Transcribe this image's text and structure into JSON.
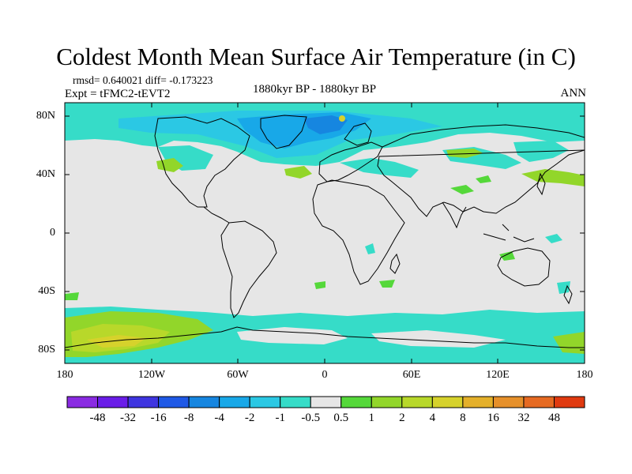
{
  "title": "Coldest Month Mean Surface Air Temperature (in C)",
  "stats": "rmsd= 0.640021 diff= -0.173223",
  "expt": "Expt = tFMC2-tEVT2",
  "period": "1880kyr BP - 1880kyr BP",
  "season": "ANN",
  "y_axis": {
    "ticks": [
      "80N",
      "40N",
      "0",
      "40S",
      "80S"
    ]
  },
  "x_axis": {
    "ticks": [
      "180",
      "120W",
      "60W",
      "0",
      "60E",
      "120E",
      "180"
    ]
  },
  "colorbar": {
    "colors": [
      "#8a2be2",
      "#6a1de8",
      "#3f35e0",
      "#1f59e6",
      "#1686e0",
      "#18a8e8",
      "#2bc8e4",
      "#36dcc8",
      "#e6e6e6",
      "#55d83a",
      "#92d62a",
      "#b8d82a",
      "#d6d22c",
      "#e4b02a",
      "#e6902a",
      "#e66a22",
      "#e03a10"
    ],
    "labels": [
      "-48",
      "-32",
      "-16",
      "-8",
      "-4",
      "-2",
      "-1",
      "-0.5",
      "0.5",
      "1",
      "2",
      "4",
      "8",
      "16",
      "32",
      "48"
    ]
  }
}
